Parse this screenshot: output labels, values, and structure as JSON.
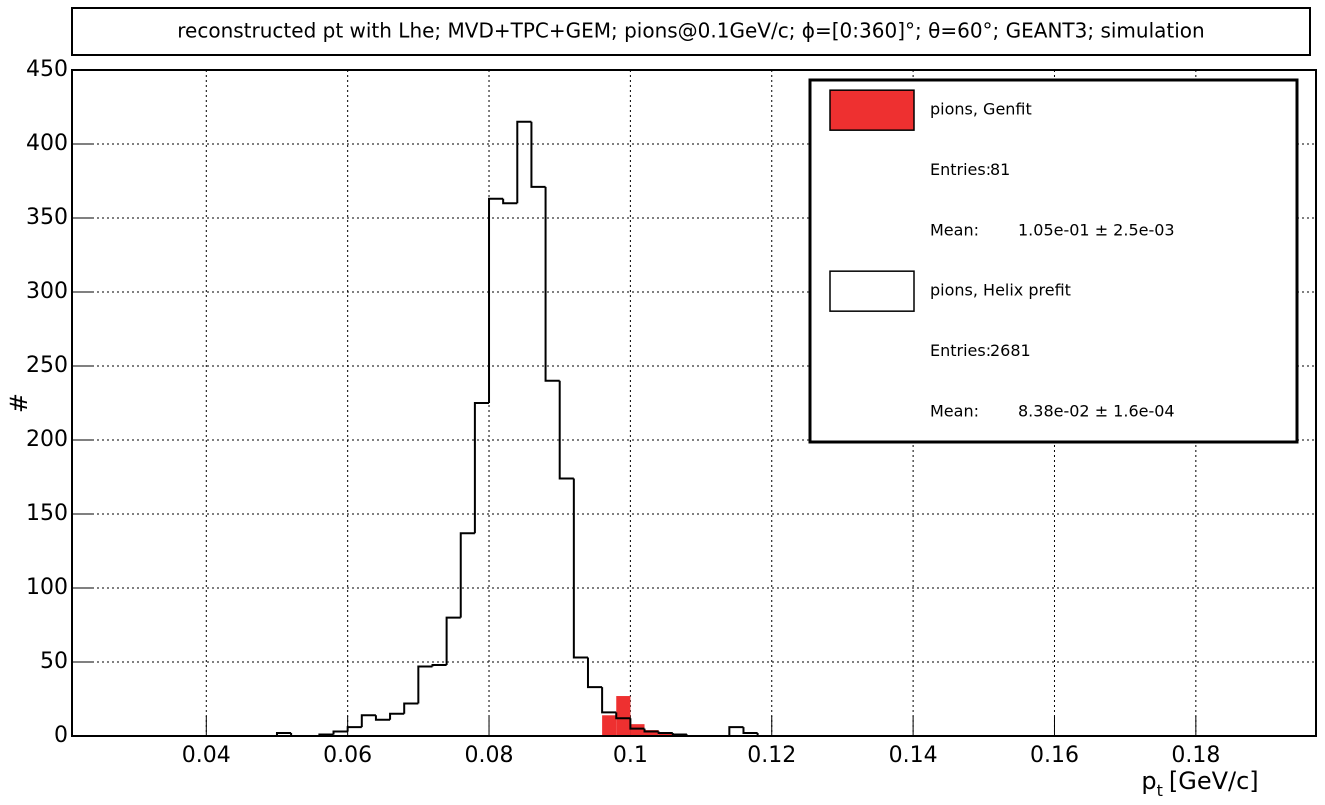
{
  "chart_data": {
    "type": "histogram",
    "title": "reconstructed pt with Lhe; MVD+TPC+GEM; pions@0.1GeV/c; ϕ=[0:360]°; θ=60°; GEANT3; simulation",
    "x_label": "p",
    "x_label_sub": "t",
    "x_label_unit": "[GeV/c]",
    "y_label": "#",
    "bins": [
      0.048,
      0.05,
      0.052,
      0.054,
      0.056,
      0.058,
      0.06,
      0.062,
      0.064,
      0.066,
      0.068,
      0.07,
      0.072,
      0.074,
      0.076,
      0.078,
      0.08,
      0.082,
      0.084,
      0.086,
      0.088,
      0.09,
      0.092,
      0.094,
      0.096,
      0.098,
      0.1,
      0.102,
      0.104,
      0.106,
      0.108,
      0.11,
      0.112,
      0.114,
      0.116,
      0.118,
      0.12
    ],
    "series": [
      {
        "name": "pions, Genfit",
        "color": "#ee3030",
        "filled": true,
        "values": [
          0,
          0,
          0,
          0,
          0,
          0,
          0,
          0,
          0,
          0,
          0,
          0,
          0,
          0,
          0,
          0,
          0,
          0,
          0,
          0,
          0,
          0,
          0,
          0,
          14,
          27,
          8,
          4,
          2,
          1,
          0,
          0,
          0,
          0,
          0,
          0
        ],
        "stats": [
          {
            "label": "Entries:",
            "text": "81"
          },
          {
            "label": "Mean:",
            "text": "1.05e-01 ± 2.5e-03"
          }
        ]
      },
      {
        "name": "pions, Helix prefit",
        "color": "#000000",
        "filled": false,
        "values": [
          0,
          2,
          0,
          0,
          1,
          3,
          6,
          14,
          11,
          15,
          22,
          47,
          48,
          80,
          137,
          225,
          363,
          360,
          415,
          371,
          240,
          174,
          53,
          33,
          16,
          12,
          5,
          3,
          2,
          1,
          0,
          0,
          0,
          6,
          2,
          0
        ],
        "stats": [
          {
            "label": "Entries:",
            "text": "2681"
          },
          {
            "label": "Mean:",
            "text": "8.38e-02 ± 1.6e-04"
          }
        ]
      }
    ],
    "xlim": [
      0.021,
      0.197
    ],
    "xticks": [
      0.04,
      0.06,
      0.08,
      0.1,
      0.12,
      0.14,
      0.16,
      0.18
    ],
    "ylim": [
      0,
      450
    ],
    "yticks": [
      0,
      50,
      100,
      150,
      200,
      250,
      300,
      350,
      400,
      450
    ],
    "grid": true
  }
}
